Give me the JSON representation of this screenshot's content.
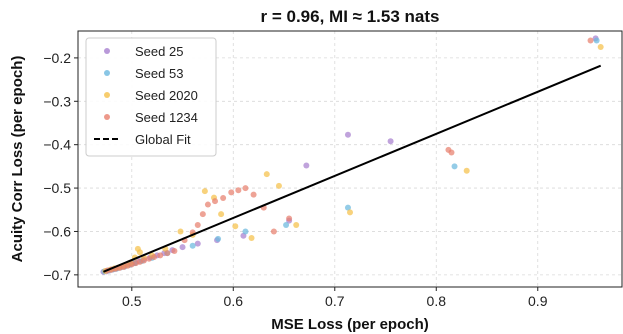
{
  "chart_data": {
    "type": "scatter",
    "title": "r = 0.96, MI ≈ 1.53 nats",
    "xlabel": "MSE Loss (per epoch)",
    "ylabel": "Acuity Corr Loss (per epoch)",
    "xlim": [
      0.447,
      0.983
    ],
    "ylim": [
      -0.728,
      -0.138
    ],
    "xticks": [
      0.5,
      0.6,
      0.7,
      0.8,
      0.9
    ],
    "yticks": [
      -0.7,
      -0.6,
      -0.5,
      -0.4,
      -0.3,
      -0.2
    ],
    "grid": true,
    "legend_position": "top-left",
    "series": [
      {
        "name": "Seed 25",
        "color": "#a77fcf",
        "points": [
          [
            0.472,
            -0.693
          ],
          [
            0.475,
            -0.692
          ],
          [
            0.478,
            -0.69
          ],
          [
            0.48,
            -0.688
          ],
          [
            0.482,
            -0.687
          ],
          [
            0.484,
            -0.686
          ],
          [
            0.486,
            -0.684
          ],
          [
            0.488,
            -0.683
          ],
          [
            0.49,
            -0.681
          ],
          [
            0.492,
            -0.68
          ],
          [
            0.494,
            -0.678
          ],
          [
            0.497,
            -0.676
          ],
          [
            0.5,
            -0.674
          ],
          [
            0.503,
            -0.672
          ],
          [
            0.507,
            -0.668
          ],
          [
            0.512,
            -0.664
          ],
          [
            0.518,
            -0.66
          ],
          [
            0.525,
            -0.655
          ],
          [
            0.532,
            -0.65
          ],
          [
            0.54,
            -0.643
          ],
          [
            0.55,
            -0.636
          ],
          [
            0.565,
            -0.628
          ],
          [
            0.584,
            -0.62
          ],
          [
            0.61,
            -0.61
          ],
          [
            0.655,
            -0.575
          ],
          [
            0.672,
            -0.448
          ],
          [
            0.713,
            -0.377
          ],
          [
            0.755,
            -0.392
          ],
          [
            0.957,
            -0.155
          ]
        ]
      },
      {
        "name": "Seed 53",
        "color": "#6bb8de",
        "points": [
          [
            0.473,
            -0.692
          ],
          [
            0.477,
            -0.69
          ],
          [
            0.481,
            -0.688
          ],
          [
            0.485,
            -0.686
          ],
          [
            0.489,
            -0.683
          ],
          [
            0.493,
            -0.681
          ],
          [
            0.498,
            -0.677
          ],
          [
            0.503,
            -0.673
          ],
          [
            0.51,
            -0.668
          ],
          [
            0.52,
            -0.661
          ],
          [
            0.535,
            -0.65
          ],
          [
            0.56,
            -0.633
          ],
          [
            0.585,
            -0.617
          ],
          [
            0.612,
            -0.6
          ],
          [
            0.652,
            -0.585
          ],
          [
            0.713,
            -0.545
          ],
          [
            0.818,
            -0.45
          ],
          [
            0.958,
            -0.16
          ]
        ]
      },
      {
        "name": "Seed 2020",
        "color": "#f5c04a",
        "points": [
          [
            0.474,
            -0.691
          ],
          [
            0.479,
            -0.688
          ],
          [
            0.483,
            -0.685
          ],
          [
            0.487,
            -0.683
          ],
          [
            0.491,
            -0.68
          ],
          [
            0.495,
            -0.677
          ],
          [
            0.499,
            -0.673
          ],
          [
            0.503,
            -0.66
          ],
          [
            0.506,
            -0.64
          ],
          [
            0.508,
            -0.648
          ],
          [
            0.512,
            -0.66
          ],
          [
            0.52,
            -0.655
          ],
          [
            0.533,
            -0.64
          ],
          [
            0.548,
            -0.6
          ],
          [
            0.56,
            -0.608
          ],
          [
            0.572,
            -0.507
          ],
          [
            0.581,
            -0.522
          ],
          [
            0.588,
            -0.56
          ],
          [
            0.602,
            -0.588
          ],
          [
            0.618,
            -0.615
          ],
          [
            0.633,
            -0.468
          ],
          [
            0.645,
            -0.495
          ],
          [
            0.662,
            -0.585
          ],
          [
            0.715,
            -0.556
          ],
          [
            0.83,
            -0.46
          ],
          [
            0.962,
            -0.175
          ]
        ]
      },
      {
        "name": "Seed 1234",
        "color": "#e8806e",
        "points": [
          [
            0.476,
            -0.69
          ],
          [
            0.48,
            -0.688
          ],
          [
            0.484,
            -0.686
          ],
          [
            0.488,
            -0.684
          ],
          [
            0.492,
            -0.682
          ],
          [
            0.496,
            -0.679
          ],
          [
            0.5,
            -0.676
          ],
          [
            0.504,
            -0.673
          ],
          [
            0.508,
            -0.67
          ],
          [
            0.512,
            -0.667
          ],
          [
            0.517,
            -0.663
          ],
          [
            0.522,
            -0.659
          ],
          [
            0.528,
            -0.655
          ],
          [
            0.535,
            -0.65
          ],
          [
            0.542,
            -0.645
          ],
          [
            0.552,
            -0.62
          ],
          [
            0.56,
            -0.602
          ],
          [
            0.565,
            -0.585
          ],
          [
            0.57,
            -0.56
          ],
          [
            0.575,
            -0.538
          ],
          [
            0.582,
            -0.53
          ],
          [
            0.59,
            -0.523
          ],
          [
            0.598,
            -0.51
          ],
          [
            0.605,
            -0.505
          ],
          [
            0.612,
            -0.5
          ],
          [
            0.62,
            -0.515
          ],
          [
            0.63,
            -0.545
          ],
          [
            0.64,
            -0.6
          ],
          [
            0.655,
            -0.57
          ],
          [
            0.812,
            -0.412
          ],
          [
            0.815,
            -0.418
          ],
          [
            0.952,
            -0.16
          ]
        ]
      },
      {
        "name": "Global Fit",
        "kind": "line",
        "color": "#000000",
        "points": [
          [
            0.472,
            -0.693
          ],
          [
            0.962,
            -0.218
          ]
        ]
      }
    ]
  }
}
